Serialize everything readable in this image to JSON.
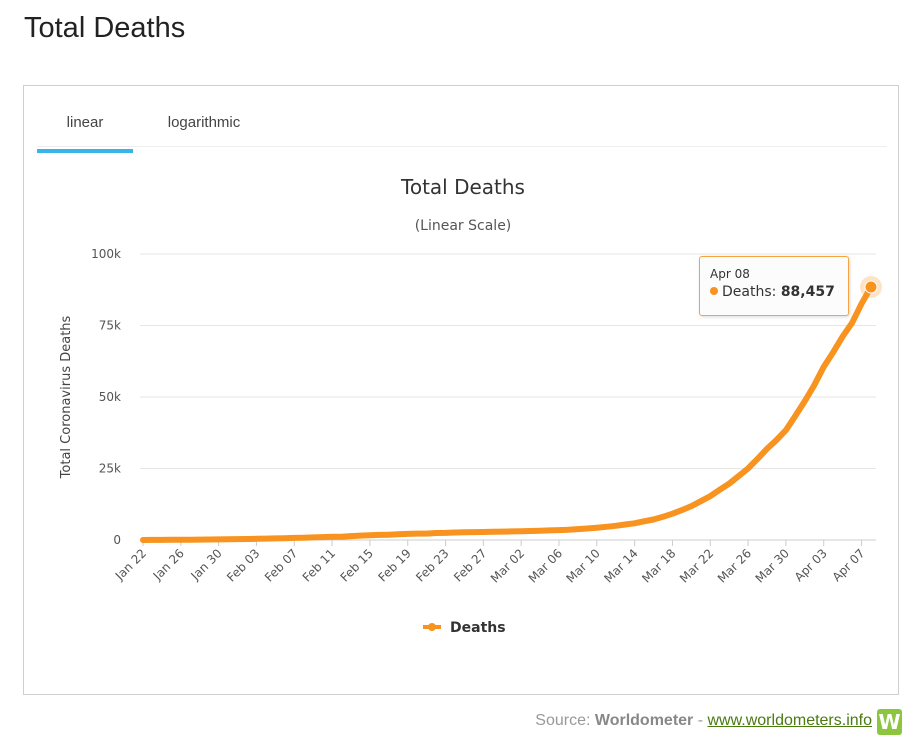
{
  "page": {
    "title": "Total Deaths"
  },
  "tabs": [
    {
      "label": "linear",
      "active": true
    },
    {
      "label": "logarithmic",
      "active": false
    }
  ],
  "tooltip": {
    "date": "Apr 08",
    "series": "Deaths",
    "value": "88,457"
  },
  "source": {
    "prefix": "Source: ",
    "name": "Worldometer",
    "separator": " - ",
    "link": "www.worldometers.info",
    "logo": "W"
  },
  "colors": {
    "series": "#f7931e",
    "tab_active": "#39b4e8",
    "logo": "#8cc63e",
    "link": "#4a7a10"
  },
  "chart_data": {
    "type": "line",
    "title": "Total Deaths",
    "subtitle": "(Linear Scale)",
    "ylabel": "Total Coronavirus Deaths",
    "xlabel": "",
    "ylim": [
      0,
      100000
    ],
    "yticks": [
      {
        "value": 0,
        "label": "0"
      },
      {
        "value": 25000,
        "label": "25k"
      },
      {
        "value": 50000,
        "label": "50k"
      },
      {
        "value": 75000,
        "label": "75k"
      },
      {
        "value": 100000,
        "label": "100k"
      }
    ],
    "x_tick_labels": [
      "Jan 22",
      "Jan 26",
      "Jan 30",
      "Feb 03",
      "Feb 07",
      "Feb 11",
      "Feb 15",
      "Feb 19",
      "Feb 23",
      "Feb 27",
      "Mar 02",
      "Mar 06",
      "Mar 10",
      "Mar 14",
      "Mar 18",
      "Mar 22",
      "Mar 26",
      "Mar 30",
      "Apr 03",
      "Apr 07"
    ],
    "x_tick_every": 4,
    "grid": true,
    "legend_position": "bottom-center",
    "series": [
      {
        "name": "Deaths",
        "x": [
          "Jan 22",
          "Jan 23",
          "Jan 24",
          "Jan 25",
          "Jan 26",
          "Jan 27",
          "Jan 28",
          "Jan 29",
          "Jan 30",
          "Jan 31",
          "Feb 01",
          "Feb 02",
          "Feb 03",
          "Feb 04",
          "Feb 05",
          "Feb 06",
          "Feb 07",
          "Feb 08",
          "Feb 09",
          "Feb 10",
          "Feb 11",
          "Feb 12",
          "Feb 13",
          "Feb 14",
          "Feb 15",
          "Feb 16",
          "Feb 17",
          "Feb 18",
          "Feb 19",
          "Feb 20",
          "Feb 21",
          "Feb 22",
          "Feb 23",
          "Feb 24",
          "Feb 25",
          "Feb 26",
          "Feb 27",
          "Feb 28",
          "Feb 29",
          "Mar 01",
          "Mar 02",
          "Mar 03",
          "Mar 04",
          "Mar 05",
          "Mar 06",
          "Mar 07",
          "Mar 08",
          "Mar 09",
          "Mar 10",
          "Mar 11",
          "Mar 12",
          "Mar 13",
          "Mar 14",
          "Mar 15",
          "Mar 16",
          "Mar 17",
          "Mar 18",
          "Mar 19",
          "Mar 20",
          "Mar 21",
          "Mar 22",
          "Mar 23",
          "Mar 24",
          "Mar 25",
          "Mar 26",
          "Mar 27",
          "Mar 28",
          "Mar 29",
          "Mar 30",
          "Mar 31",
          "Apr 01",
          "Apr 02",
          "Apr 03",
          "Apr 04",
          "Apr 05",
          "Apr 06",
          "Apr 07",
          "Apr 08"
        ],
        "values": [
          17,
          25,
          41,
          56,
          80,
          106,
          132,
          170,
          213,
          259,
          305,
          362,
          426,
          492,
          564,
          634,
          719,
          806,
          906,
          1013,
          1113,
          1118,
          1371,
          1523,
          1666,
          1770,
          1868,
          2007,
          2122,
          2247,
          2251,
          2458,
          2469,
          2629,
          2708,
          2770,
          2814,
          2872,
          2941,
          2996,
          3085,
          3160,
          3254,
          3348,
          3460,
          3558,
          3802,
          4030,
          4291,
          4623,
          4982,
          5430,
          5836,
          6522,
          7178,
          8110,
          9198,
          10455,
          11870,
          13563,
          15360,
          17540,
          19720,
          22350,
          25050,
          28350,
          31900,
          34960,
          38380,
          43440,
          48550,
          54150,
          60530,
          65650,
          71120,
          75950,
          82580,
          88457
        ]
      }
    ]
  }
}
